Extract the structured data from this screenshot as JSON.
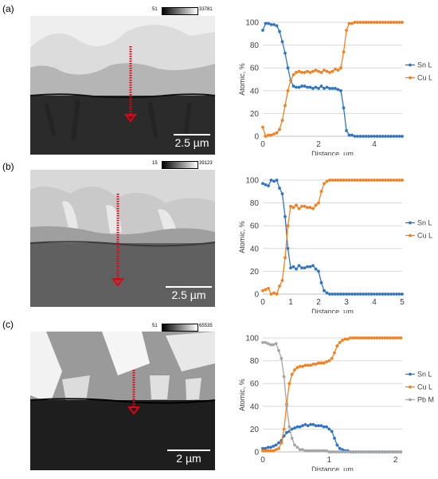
{
  "colors": {
    "sn": "#2e75c5",
    "cu": "#f47f1f",
    "pb": "#a5a5a5",
    "arrow": "#e60012"
  },
  "panels": [
    {
      "label": "(a)",
      "colorbar": {
        "min": "51",
        "max": "33781"
      },
      "scalebar": "2.5 µm",
      "chart_data": {
        "type": "line",
        "xlabel": "Distance, µm",
        "ylabel": "Atomic, %",
        "xlim": [
          0,
          5
        ],
        "ylim": [
          0,
          100
        ],
        "xticks": [
          "0",
          "2",
          "4"
        ],
        "xtick_values": [
          0,
          2,
          4
        ],
        "yticks": [
          "0",
          "20",
          "40",
          "60",
          "80",
          "100"
        ],
        "legend": "right",
        "x": [
          0,
          0.1,
          0.2,
          0.3,
          0.4,
          0.5,
          0.6,
          0.7,
          0.8,
          0.9,
          1.0,
          1.1,
          1.2,
          1.3,
          1.4,
          1.5,
          1.6,
          1.7,
          1.8,
          1.9,
          2.0,
          2.1,
          2.2,
          2.3,
          2.4,
          2.5,
          2.6,
          2.7,
          2.8,
          2.9,
          3.0,
          3.1,
          3.2,
          3.3,
          3.4,
          3.5,
          3.6,
          3.7,
          3.8,
          3.9,
          4.0,
          4.1,
          4.2,
          4.3,
          4.4,
          4.5,
          4.6,
          4.7,
          4.8,
          4.9,
          5.0
        ],
        "series": [
          {
            "name": "Sn L",
            "color": "sn",
            "values": [
              93,
              99,
              99,
              98,
              98,
              97,
              92,
              83,
              73,
              60,
              49,
              44,
              43,
              43,
              44,
              44,
              43,
              43,
              42,
              43,
              42,
              44,
              42,
              43,
              42,
              42,
              42,
              41,
              40,
              25,
              5,
              1,
              1,
              0,
              0,
              0,
              0,
              0,
              0,
              0,
              0,
              0,
              0,
              0,
              0,
              0,
              0,
              0,
              0,
              0,
              0
            ]
          },
          {
            "name": "Cu L",
            "color": "cu",
            "values": [
              8,
              0,
              1,
              1,
              2,
              3,
              6,
              14,
              27,
              40,
              49,
              54,
              56,
              57,
              56,
              56,
              57,
              56,
              57,
              58,
              57,
              56,
              58,
              57,
              56,
              57,
              59,
              58,
              60,
              74,
              93,
              99,
              99,
              100,
              100,
              100,
              100,
              100,
              100,
              100,
              100,
              100,
              100,
              100,
              100,
              100,
              100,
              100,
              100,
              100,
              100
            ]
          }
        ]
      }
    },
    {
      "label": "(b)",
      "colorbar": {
        "min": "15",
        "max": "39123"
      },
      "scalebar": "2.5 µm",
      "chart_data": {
        "type": "line",
        "xlabel": "Distance, µm",
        "ylabel": "Atomic, %",
        "xlim": [
          0,
          5
        ],
        "ylim": [
          0,
          100
        ],
        "xticks": [
          "0",
          "1",
          "2",
          "3",
          "4",
          "5"
        ],
        "xtick_values": [
          0,
          1,
          2,
          3,
          4,
          5
        ],
        "yticks": [
          "0",
          "20",
          "40",
          "60",
          "80",
          "100"
        ],
        "legend": "right",
        "x": [
          0,
          0.1,
          0.2,
          0.3,
          0.4,
          0.5,
          0.6,
          0.7,
          0.8,
          0.9,
          1.0,
          1.1,
          1.2,
          1.3,
          1.4,
          1.5,
          1.6,
          1.7,
          1.8,
          1.9,
          2.0,
          2.1,
          2.2,
          2.3,
          2.4,
          2.5,
          2.6,
          2.7,
          2.8,
          2.9,
          3.0,
          3.1,
          3.2,
          3.3,
          3.4,
          3.5,
          3.6,
          3.7,
          3.8,
          3.9,
          4.0,
          4.1,
          4.2,
          4.3,
          4.4,
          4.5,
          4.6,
          4.7,
          4.8,
          4.9,
          5.0
        ],
        "series": [
          {
            "name": "Sn L",
            "color": "sn",
            "values": [
              97,
              96,
              95,
              100,
              99,
              100,
              93,
              88,
              68,
              40,
              23,
              24,
              22,
              25,
              23,
              23,
              24,
              24,
              25,
              22,
              20,
              10,
              3,
              1,
              0,
              0,
              0,
              0,
              0,
              0,
              0,
              0,
              0,
              0,
              0,
              0,
              0,
              0,
              0,
              0,
              0,
              0,
              0,
              0,
              0,
              0,
              0,
              0,
              0,
              0,
              0
            ]
          },
          {
            "name": "Cu L",
            "color": "cu",
            "values": [
              3,
              4,
              5,
              0,
              1,
              0,
              7,
              12,
              32,
              60,
              77,
              76,
              78,
              75,
              77,
              77,
              76,
              76,
              75,
              78,
              80,
              90,
              97,
              99,
              100,
              100,
              100,
              100,
              100,
              100,
              100,
              100,
              100,
              100,
              100,
              100,
              100,
              100,
              100,
              100,
              100,
              100,
              100,
              100,
              100,
              100,
              100,
              100,
              100,
              100,
              100
            ]
          }
        ]
      }
    },
    {
      "label": "(c)",
      "colorbar": {
        "min": "51",
        "max": "65535"
      },
      "scalebar": "2 µm",
      "chart_data": {
        "type": "line",
        "xlabel": "Distance, µm",
        "ylabel": "Atomic, %",
        "xlim": [
          0,
          2.1
        ],
        "ylim": [
          0,
          100
        ],
        "xticks": [
          "0",
          "1",
          "2"
        ],
        "xtick_values": [
          0,
          1,
          2
        ],
        "yticks": [
          "0",
          "20",
          "40",
          "60",
          "80",
          "100"
        ],
        "legend": "right",
        "x": [
          0,
          0.04,
          0.08,
          0.12,
          0.16,
          0.2,
          0.24,
          0.28,
          0.32,
          0.36,
          0.4,
          0.44,
          0.48,
          0.52,
          0.56,
          0.6,
          0.64,
          0.68,
          0.72,
          0.76,
          0.8,
          0.84,
          0.88,
          0.92,
          0.96,
          1.0,
          1.04,
          1.08,
          1.12,
          1.16,
          1.2,
          1.24,
          1.28,
          1.32,
          1.36,
          1.4,
          1.44,
          1.48,
          1.52,
          1.56,
          1.6,
          1.64,
          1.68,
          1.72,
          1.76,
          1.8,
          1.84,
          1.88,
          1.92,
          1.96,
          2.0,
          2.04,
          2.08
        ],
        "series": [
          {
            "name": "Sn L",
            "color": "sn",
            "values": [
              3,
              3,
              4,
              4,
              5,
              6,
              8,
              10,
              14,
              17,
              18,
              20,
              21,
              22,
              22,
              23,
              24,
              23,
              24,
              24,
              23,
              23,
              23,
              22,
              22,
              20,
              18,
              12,
              6,
              3,
              2,
              1,
              1,
              0,
              0,
              0,
              0,
              0,
              0,
              0,
              0,
              0,
              0,
              0,
              0,
              0,
              0,
              0,
              0,
              0,
              0,
              0,
              0
            ]
          },
          {
            "name": "Cu L",
            "color": "cu",
            "values": [
              1,
              1,
              1,
              1,
              1,
              2,
              3,
              8,
              20,
              42,
              60,
              68,
              72,
              74,
              75,
              75,
              76,
              76,
              76,
              77,
              77,
              78,
              78,
              78,
              79,
              80,
              82,
              87,
              93,
              96,
              98,
              99,
              99,
              100,
              100,
              100,
              100,
              100,
              100,
              100,
              100,
              100,
              100,
              100,
              100,
              100,
              100,
              100,
              100,
              100,
              100,
              100,
              100
            ]
          },
          {
            "name": "Pb M",
            "color": "pb",
            "values": [
              96,
              96,
              95,
              94,
              94,
              95,
              89,
              82,
              66,
              40,
              22,
              12,
              6,
              4,
              2,
              2,
              1,
              1,
              1,
              1,
              1,
              1,
              1,
              1,
              1,
              0,
              0,
              0,
              0,
              0,
              0,
              0,
              0,
              0,
              0,
              0,
              0,
              0,
              0,
              0,
              0,
              0,
              0,
              0,
              0,
              0,
              0,
              0,
              0,
              0,
              0,
              0,
              0
            ]
          }
        ]
      }
    }
  ]
}
